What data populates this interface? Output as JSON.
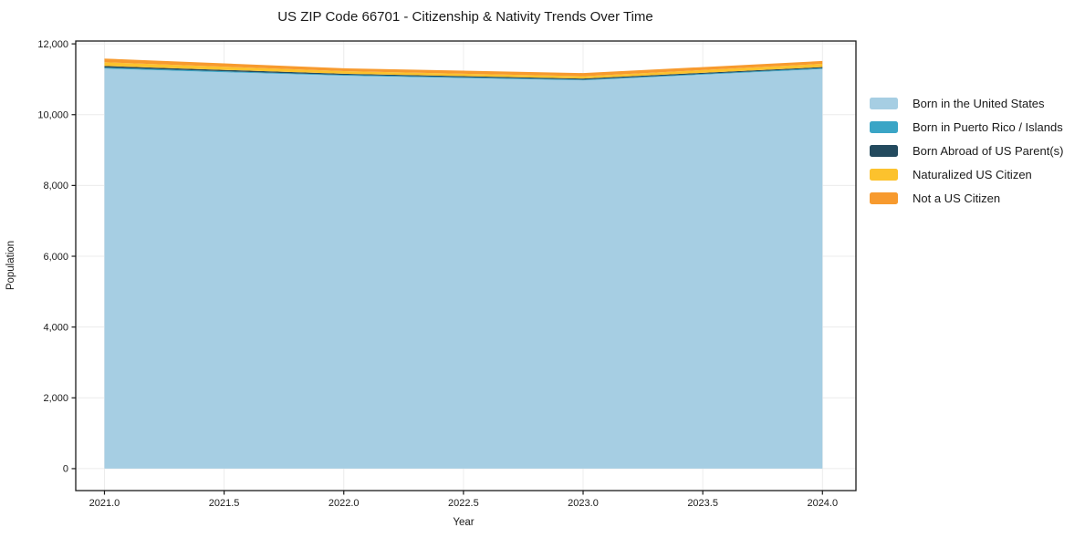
{
  "chart_data": {
    "type": "area",
    "stacked": true,
    "title": "US ZIP Code 66701 - Citizenship & Nativity Trends Over Time",
    "xlabel": "Year",
    "ylabel": "Population",
    "x": [
      2021,
      2022,
      2023,
      2024
    ],
    "series": [
      {
        "name": "Born in the United States",
        "color": "#a6cee3",
        "values": [
          11300,
          11100,
          10970,
          11290
        ]
      },
      {
        "name": "Born in Puerto Rico / Islands",
        "color": "#3aa5c6",
        "values": [
          30,
          25,
          20,
          25
        ]
      },
      {
        "name": "Born Abroad of US Parent(s)",
        "color": "#234a5e",
        "values": [
          45,
          30,
          30,
          30
        ]
      },
      {
        "name": "Naturalized US Citizen",
        "color": "#fcc22d",
        "values": [
          105,
          75,
          65,
          90
        ]
      },
      {
        "name": "Not a US Citizen",
        "color": "#f79a2e",
        "values": [
          105,
          80,
          90,
          80
        ]
      }
    ],
    "xlim": [
      2020.88,
      2024.14
    ],
    "ylim": [
      -620,
      12080
    ],
    "xticks": [
      2021.0,
      2021.5,
      2022.0,
      2022.5,
      2023.0,
      2023.5,
      2024.0
    ],
    "xtick_labels": [
      "2021.0",
      "2021.5",
      "2022.0",
      "2022.5",
      "2023.0",
      "2023.5",
      "2024.0"
    ],
    "yticks": [
      0,
      2000,
      4000,
      6000,
      8000,
      10000,
      12000
    ],
    "ytick_labels": [
      "0",
      "2,000",
      "4,000",
      "6,000",
      "8,000",
      "10,000",
      "12,000"
    ],
    "grid": true,
    "grid_color": "#ececec",
    "spine_color": "#1a1a1a",
    "legend_position": "right-outside"
  }
}
